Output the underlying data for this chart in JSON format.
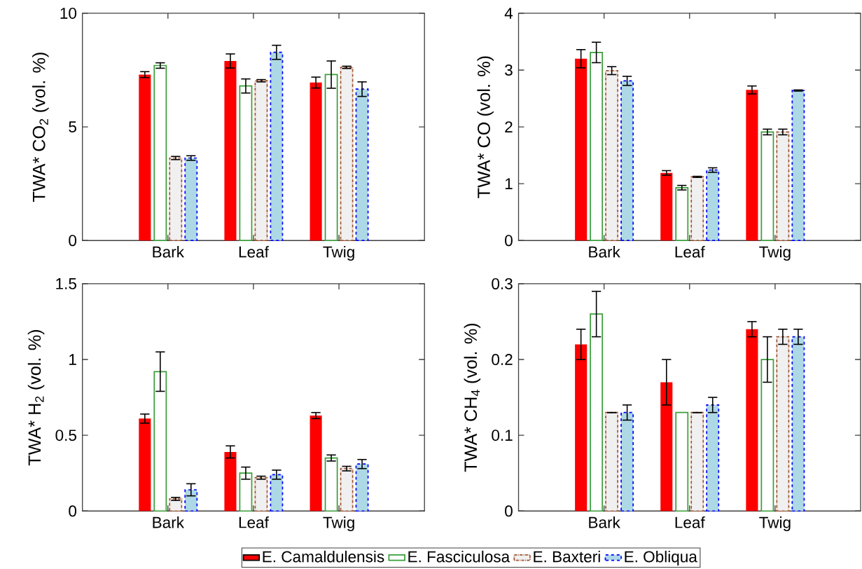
{
  "chart_data": [
    {
      "type": "bar",
      "ylabel": "TWA* CO$_{2}$ (vol. %)",
      "categories": [
        "Bark",
        "Leaf",
        "Twig"
      ],
      "ylim": [
        0,
        10
      ],
      "yticks": [
        0,
        5,
        10
      ],
      "series": [
        {
          "color": "#ff0000",
          "line_style": "solid",
          "values": [
            7.3,
            7.9,
            6.95
          ],
          "errors": [
            0.13,
            0.31,
            0.24
          ]
        },
        {
          "color": "#3a9e3a",
          "line_style": "solid",
          "values": [
            7.7,
            6.8,
            7.3
          ],
          "errors": [
            0.12,
            0.31,
            0.6
          ]
        },
        {
          "color": "#a0522d",
          "line_style": "dotted",
          "values": [
            3.63,
            7.03,
            7.62
          ],
          "errors": [
            0.07,
            0.05,
            0.05
          ]
        },
        {
          "color": "#0000ff",
          "line_style": "dashed",
          "values": [
            3.63,
            8.28,
            6.66
          ],
          "errors": [
            0.1,
            0.31,
            0.32
          ]
        }
      ]
    },
    {
      "type": "bar",
      "ylabel": "TWA* CO (vol. %)",
      "categories": [
        "Bark",
        "Leaf",
        "Twig"
      ],
      "ylim": [
        0,
        4
      ],
      "yticks": [
        0,
        1,
        2,
        3,
        4
      ],
      "series": [
        {
          "color": "#ff0000",
          "line_style": "solid",
          "values": [
            3.2,
            1.19,
            2.65
          ],
          "errors": [
            0.16,
            0.04,
            0.07
          ]
        },
        {
          "color": "#3a9e3a",
          "line_style": "solid",
          "values": [
            3.31,
            0.93,
            1.91
          ],
          "errors": [
            0.18,
            0.04,
            0.05
          ]
        },
        {
          "color": "#a0522d",
          "line_style": "dotted",
          "values": [
            2.99,
            1.12,
            1.91
          ],
          "errors": [
            0.07,
            0.01,
            0.05
          ]
        },
        {
          "color": "#0000ff",
          "line_style": "dashed",
          "values": [
            2.81,
            1.24,
            2.64
          ],
          "errors": [
            0.08,
            0.04,
            0.01
          ]
        }
      ]
    },
    {
      "type": "bar",
      "ylabel": "TWA* H$_{2}$ (vol. %)",
      "categories": [
        "Bark",
        "Leaf",
        "Twig"
      ],
      "ylim": [
        0,
        1.5
      ],
      "yticks": [
        0,
        0.5,
        1,
        1.5
      ],
      "legend": "bottom",
      "series": [
        {
          "name": "E. Camaldulensis",
          "color": "#ff0000",
          "line_style": "solid",
          "values": [
            0.61,
            0.39,
            0.63
          ],
          "errors": [
            0.03,
            0.04,
            0.02
          ]
        },
        {
          "name": "E. Fasciculosa",
          "color": "#3a9e3a",
          "line_style": "solid",
          "values": [
            0.92,
            0.25,
            0.35
          ],
          "errors": [
            0.13,
            0.04,
            0.02
          ]
        },
        {
          "name": "E. Baxteri",
          "color": "#a0522d",
          "line_style": "dotted",
          "values": [
            0.08,
            0.22,
            0.28
          ],
          "errors": [
            0.01,
            0.01,
            0.015
          ]
        },
        {
          "name": "E. Obliqua",
          "color": "#0000ff",
          "line_style": "dashed",
          "values": [
            0.14,
            0.24,
            0.31
          ],
          "errors": [
            0.04,
            0.03,
            0.03
          ]
        }
      ]
    },
    {
      "type": "bar",
      "ylabel": "TWA* CH$_{4}$ (vol. %)",
      "categories": [
        "Bark",
        "Leaf",
        "Twig"
      ],
      "ylim": [
        0,
        0.3
      ],
      "yticks": [
        0,
        0.1,
        0.2,
        0.3
      ],
      "series": [
        {
          "color": "#ff0000",
          "line_style": "solid",
          "values": [
            0.22,
            0.17,
            0.24
          ],
          "errors": [
            0.02,
            0.03,
            0.01
          ]
        },
        {
          "color": "#3a9e3a",
          "line_style": "solid",
          "values": [
            0.26,
            0.13,
            0.2
          ],
          "errors": [
            0.03,
            null,
            0.03
          ]
        },
        {
          "color": "#a0522d",
          "line_style": "dotted",
          "values": [
            0.13,
            0.13,
            0.23
          ],
          "errors": [
            0,
            0,
            0.01
          ]
        },
        {
          "color": "#0000ff",
          "line_style": "dashed",
          "values": [
            0.13,
            0.14,
            0.23
          ],
          "errors": [
            0.01,
            0.01,
            0.01
          ]
        }
      ]
    }
  ]
}
